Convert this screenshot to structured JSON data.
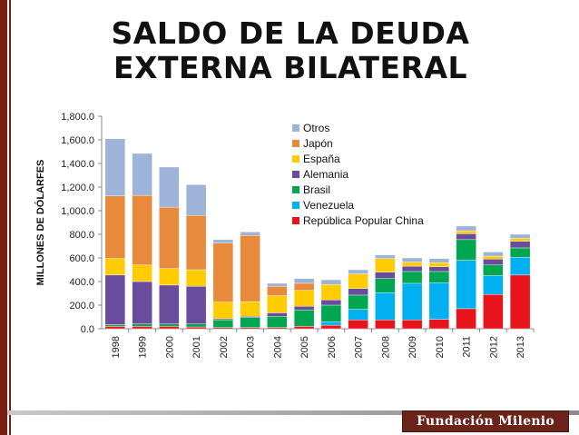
{
  "title": "SALDO DE LA DEUDA EXTERNA BILATERAL",
  "brand": "Fundación Milenio",
  "colors": {
    "frame": "#7a1f12",
    "brand_box": "#6b2419"
  },
  "chart_data": {
    "type": "bar",
    "stacked": true,
    "title": "",
    "xlabel": "",
    "ylabel": "MILLONES DE DÓLARFES",
    "ylim": [
      0,
      1800
    ],
    "yticks": [
      "0.0",
      "200.0",
      "400.0",
      "600.0",
      "800.0",
      "1,000.0",
      "1,200.0",
      "1,400.0",
      "1,600.0",
      "1,800.0"
    ],
    "grid": false,
    "legend_position": "top-right",
    "categories": [
      "1998",
      "1999",
      "2000",
      "2001",
      "2002",
      "2003",
      "2004",
      "2005",
      "2006",
      "2007",
      "2008",
      "2009",
      "2010",
      "2011",
      "2012",
      "2013"
    ],
    "series": [
      {
        "name": "República Popular China",
        "color": "#e8141c",
        "values": [
          20,
          20,
          20,
          15,
          10,
          10,
          10,
          20,
          30,
          75,
          75,
          75,
          80,
          170,
          290,
          455
        ]
      },
      {
        "name": "Venezuela",
        "color": "#00b0f0",
        "values": [
          0,
          0,
          0,
          0,
          0,
          0,
          0,
          0,
          30,
          90,
          230,
          310,
          310,
          410,
          160,
          150
        ]
      },
      {
        "name": "Brasil",
        "color": "#00a650",
        "values": [
          15,
          20,
          20,
          25,
          65,
          85,
          95,
          140,
          140,
          120,
          120,
          100,
          95,
          175,
          90,
          80
        ]
      },
      {
        "name": "Alemania",
        "color": "#6a4c9c",
        "values": [
          420,
          360,
          330,
          320,
          10,
          10,
          30,
          30,
          45,
          55,
          55,
          45,
          40,
          50,
          50,
          55
        ]
      },
      {
        "name": "España",
        "color": "#ffcc00",
        "values": [
          140,
          140,
          140,
          140,
          140,
          125,
          145,
          135,
          130,
          125,
          115,
          35,
          35,
          25,
          25,
          25
        ]
      },
      {
        "name": "Japón",
        "color": "#e88a3c",
        "values": [
          530,
          590,
          520,
          460,
          500,
          560,
          80,
          60,
          0,
          0,
          0,
          0,
          0,
          0,
          0,
          0
        ]
      },
      {
        "name": "Otros",
        "color": "#9eb3d8",
        "values": [
          485,
          355,
          340,
          260,
          30,
          30,
          25,
          40,
          40,
          35,
          30,
          35,
          35,
          40,
          35,
          35
        ]
      }
    ],
    "legend_order": [
      "Otros",
      "Japón",
      "España",
      "Alemania",
      "Brasil",
      "Venezuela",
      "República Popular China"
    ]
  }
}
